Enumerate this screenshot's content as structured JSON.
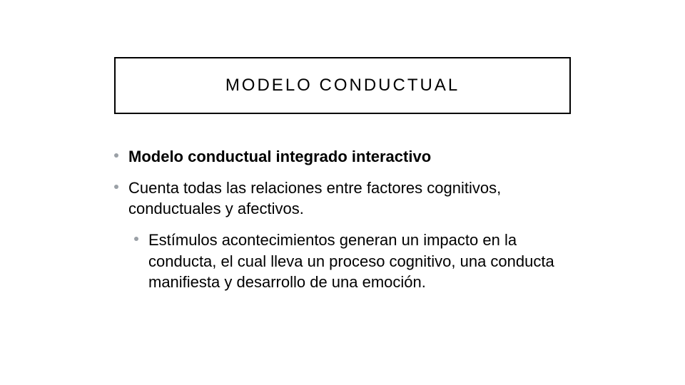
{
  "title": "MODELO CONDUCTUAL",
  "bullets": {
    "b1": "Modelo conductual integrado interactivo",
    "b2": "Cuenta todas las relaciones entre factores cognitivos, conductuales y afectivos.",
    "b3": "Estímulos acontecimientos generan un impacto en la conducta, el cual lleva un proceso cognitivo, una conducta manifiesta y desarrollo de una emoción."
  },
  "styles": {
    "title_fontsize": 24,
    "title_letter_spacing": 3,
    "body_fontsize": 22,
    "border_color": "#000000",
    "bullet_color": "#9aa0a6",
    "text_color": "#000000",
    "background_color": "#ffffff"
  }
}
